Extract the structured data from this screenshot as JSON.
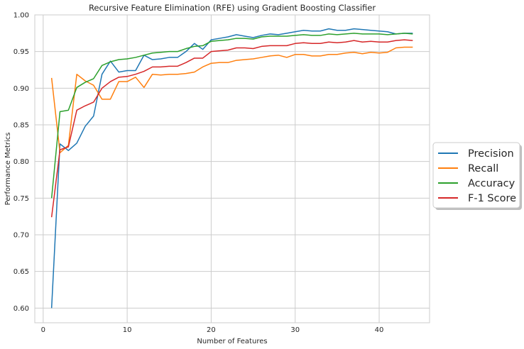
{
  "chart_data": {
    "type": "line",
    "title": "Recursive Feature Elimination (RFE) using Gradient Boosting Classifier",
    "xlabel": "Number of Features",
    "ylabel": "Performance Metrics",
    "xlim": [
      -1,
      46
    ],
    "ylim": [
      0.58,
      1.0
    ],
    "xticks": [
      0,
      10,
      20,
      30,
      40
    ],
    "yticks": [
      0.6,
      0.65,
      0.7,
      0.75,
      0.8,
      0.85,
      0.9,
      0.95,
      1.0
    ],
    "xtick_labels": [
      "0",
      "10",
      "20",
      "30",
      "40"
    ],
    "ytick_labels": [
      "0.60",
      "0.65",
      "0.70",
      "0.75",
      "0.80",
      "0.85",
      "0.90",
      "0.95",
      "1.00"
    ],
    "grid": true,
    "legend_placement": "right, outside plot",
    "x": [
      1,
      2,
      3,
      4,
      5,
      6,
      7,
      8,
      9,
      10,
      11,
      12,
      13,
      14,
      15,
      16,
      17,
      18,
      19,
      20,
      21,
      22,
      23,
      24,
      25,
      26,
      27,
      28,
      29,
      30,
      31,
      32,
      33,
      34,
      35,
      36,
      37,
      38,
      39,
      40,
      41,
      42,
      43,
      44
    ],
    "series": [
      {
        "name": "Precision",
        "color": "#1f77b4",
        "values": [
          0.6,
          0.824,
          0.815,
          0.825,
          0.848,
          0.862,
          0.919,
          0.937,
          0.922,
          0.924,
          0.924,
          0.945,
          0.939,
          0.94,
          0.942,
          0.942,
          0.95,
          0.961,
          0.953,
          0.966,
          0.968,
          0.97,
          0.973,
          0.971,
          0.969,
          0.972,
          0.974,
          0.973,
          0.975,
          0.977,
          0.979,
          0.978,
          0.978,
          0.981,
          0.979,
          0.979,
          0.981,
          0.98,
          0.979,
          0.978,
          0.977,
          0.974,
          0.975,
          0.975
        ]
      },
      {
        "name": "Recall",
        "color": "#ff7f0e",
        "values": [
          0.914,
          0.812,
          0.822,
          0.919,
          0.91,
          0.904,
          0.885,
          0.885,
          0.909,
          0.909,
          0.915,
          0.901,
          0.919,
          0.918,
          0.919,
          0.919,
          0.92,
          0.922,
          0.929,
          0.934,
          0.935,
          0.935,
          0.938,
          0.939,
          0.94,
          0.942,
          0.944,
          0.945,
          0.942,
          0.946,
          0.946,
          0.944,
          0.944,
          0.946,
          0.946,
          0.948,
          0.949,
          0.947,
          0.949,
          0.948,
          0.949,
          0.955,
          0.956,
          0.956
        ]
      },
      {
        "name": "Accuracy",
        "color": "#2ca02c",
        "values": [
          0.75,
          0.868,
          0.87,
          0.901,
          0.908,
          0.913,
          0.931,
          0.936,
          0.939,
          0.94,
          0.942,
          0.945,
          0.948,
          0.949,
          0.95,
          0.95,
          0.954,
          0.957,
          0.958,
          0.964,
          0.965,
          0.966,
          0.968,
          0.968,
          0.967,
          0.97,
          0.971,
          0.971,
          0.971,
          0.972,
          0.973,
          0.972,
          0.972,
          0.974,
          0.973,
          0.974,
          0.975,
          0.974,
          0.974,
          0.974,
          0.973,
          0.974,
          0.975,
          0.974
        ]
      },
      {
        "name": "F-1 Score",
        "color": "#d62728",
        "values": [
          0.724,
          0.816,
          0.82,
          0.87,
          0.876,
          0.881,
          0.9,
          0.909,
          0.915,
          0.916,
          0.919,
          0.923,
          0.929,
          0.929,
          0.93,
          0.93,
          0.935,
          0.941,
          0.941,
          0.95,
          0.951,
          0.952,
          0.955,
          0.955,
          0.954,
          0.957,
          0.958,
          0.958,
          0.958,
          0.961,
          0.962,
          0.961,
          0.961,
          0.963,
          0.962,
          0.963,
          0.965,
          0.963,
          0.964,
          0.963,
          0.963,
          0.965,
          0.966,
          0.965
        ]
      }
    ]
  }
}
